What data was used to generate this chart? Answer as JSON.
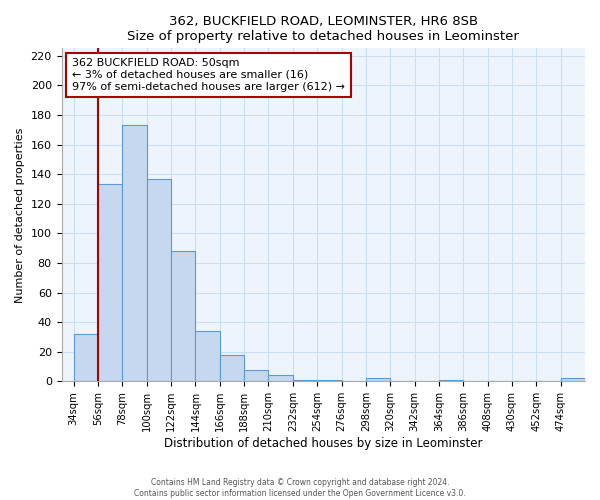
{
  "title": "362, BUCKFIELD ROAD, LEOMINSTER, HR6 8SB",
  "subtitle": "Size of property relative to detached houses in Leominster",
  "xlabel": "Distribution of detached houses by size in Leominster",
  "ylabel": "Number of detached properties",
  "bar_color": "#c5d8f0",
  "bar_edge_color": "#5b9bd5",
  "highlight_color": "#aa0000",
  "bins": [
    "34sqm",
    "56sqm",
    "78sqm",
    "100sqm",
    "122sqm",
    "144sqm",
    "166sqm",
    "188sqm",
    "210sqm",
    "232sqm",
    "254sqm",
    "276sqm",
    "298sqm",
    "320sqm",
    "342sqm",
    "364sqm",
    "386sqm",
    "408sqm",
    "430sqm",
    "452sqm",
    "474sqm"
  ],
  "values": [
    32,
    133,
    173,
    137,
    88,
    34,
    18,
    8,
    4,
    1,
    1,
    0,
    2,
    0,
    0,
    1,
    0,
    0,
    0,
    0,
    2
  ],
  "highlight_bin_index": 0,
  "annotation_title": "362 BUCKFIELD ROAD: 50sqm",
  "annotation_line1": "← 3% of detached houses are smaller (16)",
  "annotation_line2": "97% of semi-detached houses are larger (612) →",
  "ylim": [
    0,
    225
  ],
  "yticks": [
    0,
    20,
    40,
    60,
    80,
    100,
    120,
    140,
    160,
    180,
    200,
    220
  ],
  "footer1": "Contains HM Land Registry data © Crown copyright and database right 2024.",
  "footer2": "Contains public sector information licensed under the Open Government Licence v3.0.",
  "red_line_bin_index": 1
}
